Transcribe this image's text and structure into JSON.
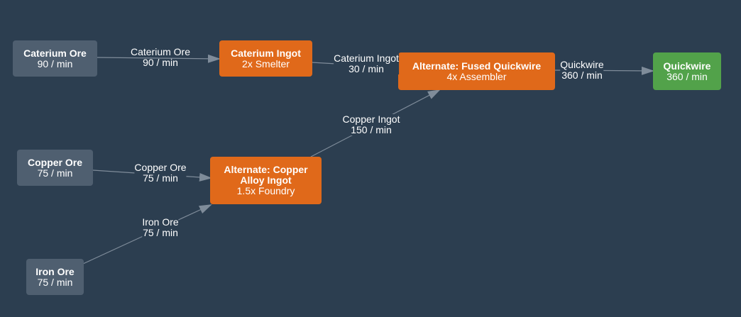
{
  "nodes": {
    "caterium_ore": {
      "title": "Caterium Ore",
      "sub": "90 / min"
    },
    "copper_ore": {
      "title": "Copper Ore",
      "sub": "75 / min"
    },
    "iron_ore": {
      "title": "Iron Ore",
      "sub": "75 / min"
    },
    "caterium_ingot": {
      "title": "Caterium Ingot",
      "sub": "2x Smelter"
    },
    "copper_alloy": {
      "title_line1": "Alternate: Copper",
      "title_line2": "Alloy Ingot",
      "sub": "1.5x Foundry"
    },
    "fused_quickwire": {
      "title": "Alternate: Fused Quickwire",
      "sub": "4x Assembler"
    },
    "quickwire": {
      "title": "Quickwire",
      "sub": "360 / min"
    }
  },
  "edges": {
    "caterium_ore_to_ingot": {
      "item": "Caterium Ore",
      "rate": "90 / min"
    },
    "copper_ore_to_alloy": {
      "item": "Copper Ore",
      "rate": "75 / min"
    },
    "iron_ore_to_alloy": {
      "item": "Iron Ore",
      "rate": "75 / min"
    },
    "caterium_ingot_to_fused": {
      "item": "Caterium Ingot",
      "rate": "30 / min"
    },
    "copper_ingot_to_fused": {
      "item": "Copper Ingot",
      "rate": "150 / min"
    },
    "fused_to_quickwire": {
      "item": "Quickwire",
      "rate": "360 / min"
    }
  },
  "colors": {
    "background": "#2c3e50",
    "source_node": "#4f5f70",
    "recipe_node": "#e0691a",
    "product_node": "#52a24a",
    "edge": "#7f8c9a"
  }
}
